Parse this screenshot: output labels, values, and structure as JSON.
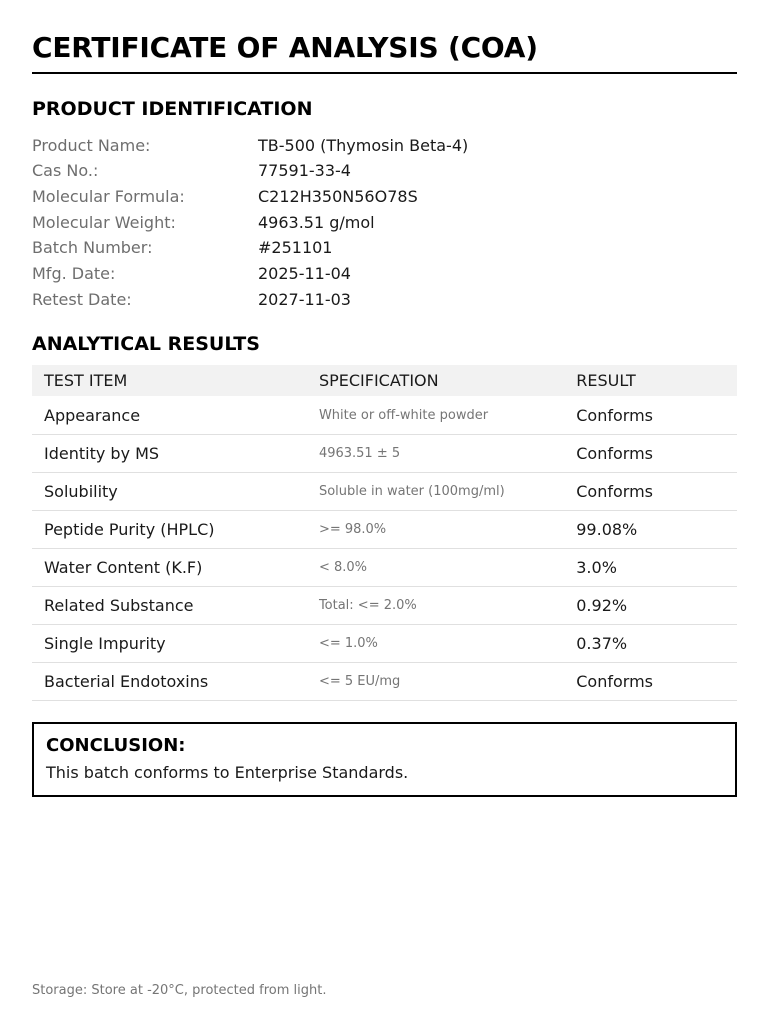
{
  "title": "CERTIFICATE OF ANALYSIS (COA)",
  "product_identification": {
    "heading": "PRODUCT IDENTIFICATION",
    "rows": [
      {
        "label": "Product Name:",
        "value": "TB-500 (Thymosin Beta-4)"
      },
      {
        "label": "Cas No.:",
        "value": "77591-33-4"
      },
      {
        "label": "Molecular Formula:",
        "value": "C212H350N56O78S"
      },
      {
        "label": "Molecular Weight:",
        "value": "4963.51 g/mol"
      },
      {
        "label": "Batch Number:",
        "value": "#251101"
      },
      {
        "label": "Mfg. Date:",
        "value": "2025-11-04"
      },
      {
        "label": "Retest Date:",
        "value": "2027-11-03"
      }
    ]
  },
  "analytical_results": {
    "heading": "ANALYTICAL RESULTS",
    "columns": [
      "TEST ITEM",
      "SPECIFICATION",
      "RESULT"
    ],
    "rows": [
      {
        "test_item": "Appearance",
        "specification": "White or off-white powder",
        "result": "Conforms"
      },
      {
        "test_item": "Identity by MS",
        "specification": "4963.51 ± 5",
        "result": "Conforms"
      },
      {
        "test_item": "Solubility",
        "specification": "Soluble in water (100mg/ml)",
        "result": "Conforms"
      },
      {
        "test_item": "Peptide Purity (HPLC)",
        "specification": ">= 98.0%",
        "result": "99.08%"
      },
      {
        "test_item": "Water Content (K.F)",
        "specification": "< 8.0%",
        "result": "3.0%"
      },
      {
        "test_item": "Related Substance",
        "specification": "Total: <= 2.0%",
        "result": "0.92%"
      },
      {
        "test_item": "Single Impurity",
        "specification": "<= 1.0%",
        "result": "0.37%"
      },
      {
        "test_item": "Bacterial Endotoxins",
        "specification": "<= 5 EU/mg",
        "result": "Conforms"
      }
    ]
  },
  "conclusion": {
    "heading": "CONCLUSION:",
    "text": "This batch conforms to Enterprise Standards."
  },
  "footer": {
    "storage": "Storage: Store at -20°C, protected from light."
  },
  "colors": {
    "text": "#1a1a1a",
    "muted_label": "#6e6e6e",
    "spec_gray": "#757575",
    "table_header_bg": "#f2f2f2",
    "row_border": "#e0e0e0",
    "rule": "#000000",
    "page_bg": "#ffffff"
  }
}
